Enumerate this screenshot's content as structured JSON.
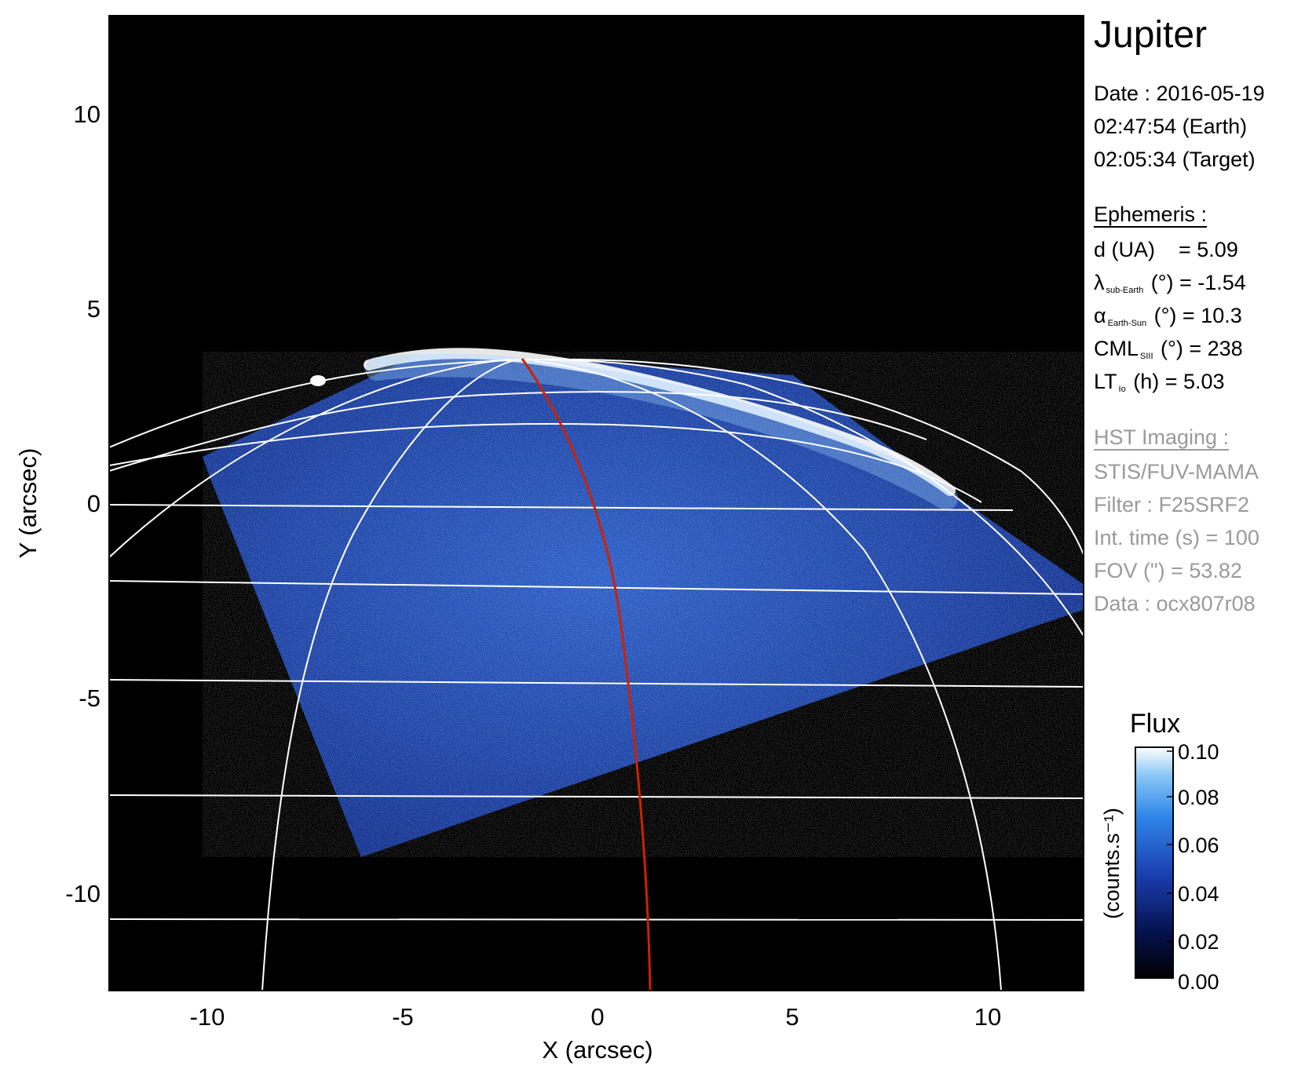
{
  "image": {
    "xaxis": {
      "label": "X (arcsec)",
      "range": [
        -12.5,
        12.5
      ],
      "ticks": [
        "-10",
        "-5",
        "0",
        "5",
        "10"
      ],
      "tick_values": [
        -10,
        -5,
        0,
        5,
        10
      ]
    },
    "yaxis": {
      "label": "Y (arcsec)",
      "range": [
        -12.5,
        12.5
      ],
      "ticks": [
        "10",
        "5",
        "0",
        "-5",
        "-10"
      ],
      "tick_values": [
        10,
        5,
        0,
        -5,
        -10
      ]
    },
    "colors": {
      "background": "#000000",
      "emission_dark": "#0b1f6b",
      "emission_mid": "#2f6bd6",
      "emission_bright": "#ffffff",
      "grid": "#ffffff",
      "meridian": "#cc2200"
    }
  },
  "info": {
    "target": "Jupiter",
    "date_line": "Date : 2016-05-19",
    "time_earth": "02:47:54 (Earth)",
    "time_target": "02:05:34 (Target)",
    "ephemeris_header": "Ephemeris :",
    "eph_d": "d (UA)    = 5.09",
    "eph_lambda_sym": "λ",
    "eph_lambda_sub": "sub-Earth",
    "eph_lambda_rest": " (°) = -1.54",
    "eph_alpha_sym": "α",
    "eph_alpha_sub": "Earth-Sun",
    "eph_alpha_rest": " (°) = 10.3",
    "eph_cml_sym": "CML",
    "eph_cml_sub": "SIII",
    "eph_cml_rest": " (°) = 238",
    "eph_lt_sym": "LT",
    "eph_lt_sub": "Io",
    "eph_lt_rest": " (h) = 5.03",
    "hst_header": "HST Imaging :",
    "hst_instrument": "STIS/FUV-MAMA",
    "hst_filter": "Filter : F25SRF2",
    "hst_inttime": "Int. time (s) = 100",
    "hst_fov": "FOV (\") = 53.82",
    "hst_data": "Data : ocx807r08"
  },
  "colorbar": {
    "title": "Flux",
    "unit_label": "(counts.s⁻¹)",
    "ticks": [
      "0.10",
      "0.08",
      "0.06",
      "0.04",
      "0.02",
      "0.00"
    ],
    "tick_values": [
      0.1,
      0.08,
      0.06,
      0.04,
      0.02,
      0.0
    ]
  }
}
